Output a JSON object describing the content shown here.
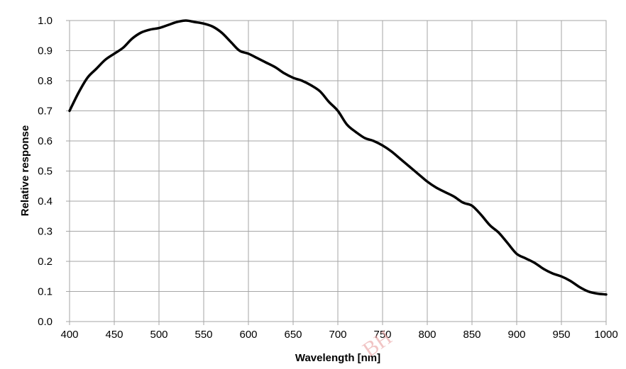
{
  "chart_data": {
    "type": "line",
    "title": "",
    "xlabel": "Wavelength [nm]",
    "ylabel": "Relative response",
    "xlim": [
      400,
      1000
    ],
    "ylim": [
      0.0,
      1.0
    ],
    "x_ticks": [
      "400",
      "450",
      "500",
      "550",
      "600",
      "650",
      "700",
      "750",
      "800",
      "850",
      "900",
      "950",
      "1000"
    ],
    "y_ticks": [
      "0.0",
      "0.1",
      "0.2",
      "0.3",
      "0.4",
      "0.5",
      "0.6",
      "0.7",
      "0.8",
      "0.9",
      "1.0"
    ],
    "grid": true,
    "legend": "none",
    "line_color": "#000000",
    "grid_color": "#a6a6a6",
    "series": [
      {
        "x": [
          400,
          410,
          420,
          430,
          440,
          450,
          460,
          470,
          480,
          490,
          500,
          510,
          520,
          530,
          540,
          550,
          560,
          570,
          580,
          590,
          600,
          610,
          620,
          630,
          640,
          650,
          660,
          670,
          680,
          690,
          700,
          710,
          720,
          730,
          740,
          750,
          760,
          770,
          780,
          790,
          800,
          810,
          820,
          830,
          840,
          850,
          860,
          870,
          880,
          890,
          900,
          910,
          920,
          930,
          940,
          950,
          960,
          970,
          980,
          990,
          1000
        ],
        "y": [
          0.7,
          0.76,
          0.81,
          0.84,
          0.87,
          0.89,
          0.91,
          0.94,
          0.96,
          0.97,
          0.975,
          0.985,
          0.995,
          1.0,
          0.995,
          0.99,
          0.98,
          0.96,
          0.93,
          0.9,
          0.89,
          0.875,
          0.86,
          0.845,
          0.825,
          0.81,
          0.8,
          0.785,
          0.765,
          0.73,
          0.7,
          0.655,
          0.63,
          0.61,
          0.6,
          0.585,
          0.565,
          0.54,
          0.515,
          0.49,
          0.465,
          0.445,
          0.43,
          0.415,
          0.395,
          0.385,
          0.355,
          0.32,
          0.295,
          0.26,
          0.225,
          0.21,
          0.195,
          0.175,
          0.16,
          0.15,
          0.135,
          0.115,
          0.1,
          0.093,
          0.09
        ]
      }
    ]
  },
  "watermark": "BH"
}
